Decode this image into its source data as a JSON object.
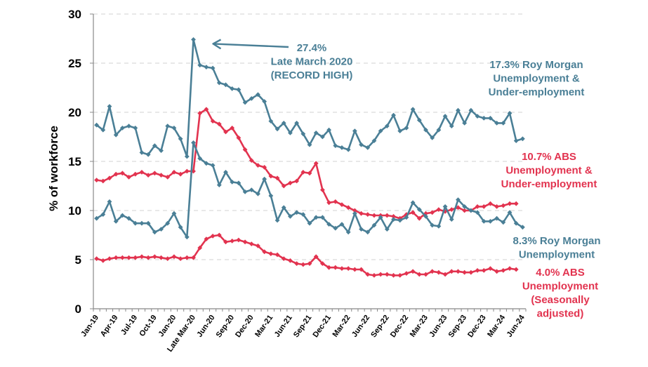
{
  "chart_data": {
    "type": "line",
    "title": "",
    "xlabel": "",
    "ylabel": "% of workforce",
    "ylim": [
      0,
      30
    ],
    "yticks": [
      0,
      5,
      10,
      15,
      20,
      25,
      30
    ],
    "grid": true,
    "colors": {
      "roy_morgan": "#4a7f96",
      "abs": "#e2334f"
    },
    "categories": [
      "Jan-19",
      "Feb-19",
      "Mar-19",
      "Apr-19",
      "May-19",
      "Jun-19",
      "Jul-19",
      "Aug-19",
      "Sep-19",
      "Oct-19",
      "Nov-19",
      "Dec-19",
      "Jan-20",
      "Feb-20",
      "Mar-20",
      "Late Mar 20",
      "Apr-20",
      "May-20",
      "Jun-20",
      "Jul-20",
      "Aug-20",
      "Sep-20",
      "Oct-20",
      "Nov-20",
      "Dec-20",
      "Jan-21",
      "Feb-21",
      "Mar-21",
      "Apr-21",
      "May-21",
      "Jun-21",
      "Jul-21",
      "Aug-21",
      "Sep-21",
      "Oct-21",
      "Nov-21",
      "Dec-21",
      "Jan-22",
      "Feb-22",
      "Mar-22",
      "Apr-22",
      "May-22",
      "Jun-22",
      "Jul-22",
      "Aug-22",
      "Sep-22",
      "Oct-22",
      "Nov-22",
      "Dec-22",
      "Jan-23",
      "Feb-23",
      "Mar-23",
      "Apr-23",
      "May-23",
      "Jun-23",
      "Jul-23",
      "Aug-23",
      "Sep-23",
      "Oct-23",
      "Nov-23",
      "Dec-23",
      "Jan-24",
      "Feb-24",
      "Mar-24",
      "Apr-24",
      "May-24",
      "Jun-24"
    ],
    "tick_labels": [
      "Jan-19",
      "Apr-19",
      "Jul-19",
      "Oct-19",
      "Jan-20",
      "Late Mar-20",
      "Jun-20",
      "Sep-20",
      "Dec-20",
      "Mar-21",
      "Jun-21",
      "Sep-21",
      "Dec-21",
      "Mar-22",
      "Jun-22",
      "Sep-22",
      "Dec-22",
      "Mar-23",
      "Jun-23",
      "Sep-23",
      "Dec-23",
      "Mar-24",
      "Jun-24"
    ],
    "tick_label_every": 3,
    "series": [
      {
        "name": "Roy Morgan Unemployment & Under-employment",
        "color_key": "roy_morgan",
        "values": [
          18.7,
          18.2,
          20.6,
          17.7,
          18.4,
          18.6,
          18.4,
          15.9,
          15.7,
          16.6,
          16.1,
          18.6,
          18.4,
          17.3,
          15.5,
          27.4,
          24.8,
          24.6,
          24.5,
          23.0,
          22.8,
          22.4,
          22.3,
          21.0,
          21.4,
          21.8,
          21.1,
          19.1,
          18.3,
          18.9,
          17.9,
          18.9,
          17.8,
          16.7,
          17.9,
          17.5,
          18.2,
          16.6,
          16.4,
          16.2,
          18.1,
          16.7,
          16.4,
          17.1,
          18.1,
          18.6,
          19.7,
          18.1,
          18.4,
          20.3,
          19.2,
          18.2,
          17.4,
          18.2,
          19.6,
          18.6,
          20.2,
          18.9,
          20.2,
          19.6,
          19.4,
          19.4,
          18.9,
          18.9,
          19.9,
          17.1,
          17.3
        ]
      },
      {
        "name": "ABS Unemployment & Under-employment",
        "color_key": "abs",
        "values": [
          13.1,
          13.0,
          13.3,
          13.7,
          13.8,
          13.4,
          13.7,
          13.9,
          13.6,
          13.8,
          13.6,
          13.4,
          13.9,
          13.7,
          14.0,
          14.0,
          19.9,
          20.3,
          19.1,
          18.8,
          18.0,
          18.4,
          17.4,
          16.2,
          15.1,
          14.6,
          14.4,
          13.5,
          13.3,
          12.5,
          12.8,
          13.0,
          13.9,
          13.8,
          14.8,
          12.1,
          10.8,
          10.9,
          10.6,
          10.3,
          10.0,
          9.7,
          9.6,
          9.5,
          9.5,
          9.5,
          9.4,
          9.2,
          9.6,
          9.8,
          9.2,
          9.7,
          9.8,
          10.1,
          9.9,
          10.1,
          10.3,
          10.0,
          10.0,
          10.4,
          10.4,
          10.7,
          10.4,
          10.5,
          10.7,
          10.7,
          null
        ]
      },
      {
        "name": "Roy Morgan Unemployment",
        "color_key": "roy_morgan",
        "values": [
          9.2,
          9.6,
          10.9,
          8.9,
          9.5,
          9.2,
          8.7,
          8.7,
          8.7,
          7.8,
          8.1,
          8.7,
          9.7,
          8.3,
          7.3,
          16.9,
          15.3,
          14.8,
          14.6,
          12.6,
          13.9,
          12.9,
          12.8,
          11.9,
          12.1,
          11.7,
          13.2,
          11.5,
          9.0,
          10.3,
          9.4,
          9.8,
          9.6,
          8.7,
          9.3,
          9.3,
          8.6,
          8.2,
          8.6,
          7.8,
          9.7,
          8.1,
          7.8,
          8.5,
          9.3,
          8.1,
          9.1,
          9.0,
          9.3,
          10.8,
          10.1,
          9.4,
          8.5,
          8.4,
          10.4,
          9.1,
          11.1,
          10.4,
          10.0,
          9.8,
          8.9,
          8.9,
          9.2,
          8.8,
          9.8,
          8.7,
          8.3
        ]
      },
      {
        "name": "ABS Unemployment (Seasonally adjusted)",
        "color_key": "abs",
        "values": [
          5.1,
          4.9,
          5.1,
          5.2,
          5.2,
          5.2,
          5.2,
          5.3,
          5.2,
          5.3,
          5.2,
          5.1,
          5.3,
          5.1,
          5.2,
          5.2,
          6.2,
          7.1,
          7.4,
          7.5,
          6.8,
          6.9,
          7.0,
          6.8,
          6.6,
          6.4,
          5.8,
          5.6,
          5.5,
          5.1,
          4.9,
          4.6,
          4.5,
          4.6,
          5.3,
          4.6,
          4.2,
          4.2,
          4.1,
          4.1,
          4.0,
          4.0,
          3.5,
          3.4,
          3.5,
          3.5,
          3.4,
          3.4,
          3.6,
          3.8,
          3.5,
          3.5,
          3.8,
          3.7,
          3.5,
          3.8,
          3.8,
          3.7,
          3.7,
          3.9,
          3.9,
          4.1,
          3.8,
          3.9,
          4.1,
          4.0,
          null
        ]
      }
    ],
    "annotations": [
      {
        "key": "peak",
        "color_key": "roy_morgan",
        "lines": [
          "27.4%",
          "Late March 2020",
          "(RECORD HIGH)"
        ],
        "arrow_to_category": "Late Mar 20",
        "arrow_to_value": 27.4
      },
      {
        "key": "rm_under",
        "color_key": "roy_morgan",
        "lines": [
          "17.3% Roy Morgan",
          "Unemployment &",
          "Under-employment"
        ]
      },
      {
        "key": "abs_under",
        "color_key": "abs",
        "lines": [
          "10.7% ABS",
          "Unemployment &",
          "Under-employment"
        ]
      },
      {
        "key": "rm_unemp",
        "color_key": "roy_morgan",
        "lines": [
          "8.3% Roy Morgan",
          "Unemployment"
        ]
      },
      {
        "key": "abs_unemp",
        "color_key": "abs",
        "lines": [
          "4.0% ABS",
          "Unemployment",
          "(Seasonally",
          "adjusted)"
        ]
      }
    ]
  }
}
